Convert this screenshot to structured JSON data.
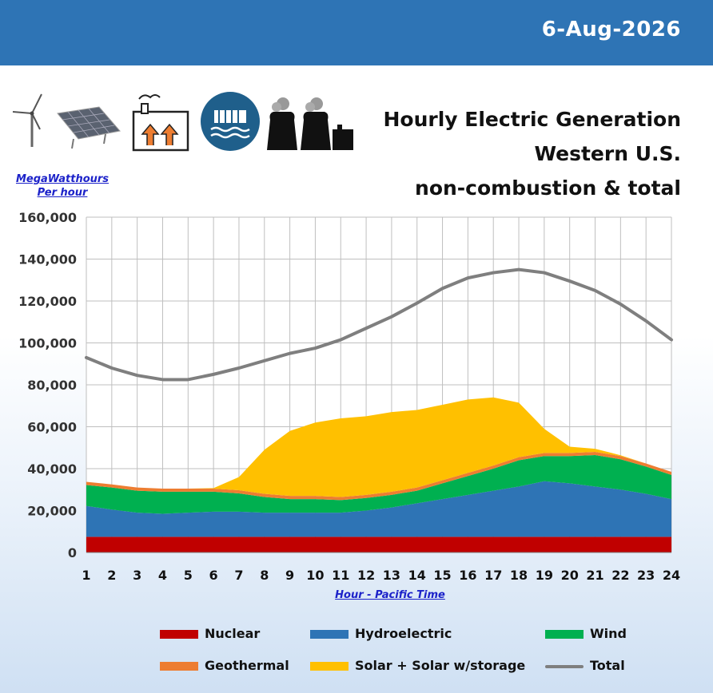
{
  "header": {
    "date": "6-Aug-2026"
  },
  "title_lines": [
    "Hourly Electric Generation",
    "Western U.S.",
    "non-combustion & total"
  ],
  "icons": [
    "wind-turbine-icon",
    "solar-panel-icon",
    "geothermal-plant-icon",
    "hydroelectric-dam-icon",
    "nuclear-plant-icon"
  ],
  "colors": {
    "nuclear": "#c00000",
    "hydro": "#2e74b5",
    "wind": "#00b050",
    "geothermal": "#ed7d31",
    "solar": "#ffc000",
    "total": "#7f7f7f",
    "header_bar": "#2e74b5"
  },
  "chart_data": {
    "type": "area",
    "stacked": true,
    "ylabel_line1": "MegaWatthours",
    "ylabel_line2": "Per hour",
    "xlabel": "Hour - Pacific Time",
    "ylim": [
      0,
      160000
    ],
    "yticks": [
      0,
      20000,
      40000,
      60000,
      80000,
      100000,
      120000,
      140000,
      160000
    ],
    "ytick_labels": [
      "0",
      "20,000",
      "40,000",
      "60,000",
      "80,000",
      "100,000",
      "120,000",
      "140,000",
      "160,000"
    ],
    "x": [
      1,
      2,
      3,
      4,
      5,
      6,
      7,
      8,
      9,
      10,
      11,
      12,
      13,
      14,
      15,
      16,
      17,
      18,
      19,
      20,
      21,
      22,
      23,
      24
    ],
    "grid": true,
    "legend_position": "bottom",
    "series": [
      {
        "key": "nuclear",
        "name": "Nuclear",
        "values": [
          7500,
          7500,
          7500,
          7500,
          7500,
          7500,
          7500,
          7500,
          7500,
          7500,
          7500,
          7500,
          7500,
          7500,
          7500,
          7500,
          7500,
          7500,
          7500,
          7500,
          7500,
          7500,
          7500,
          7500
        ]
      },
      {
        "key": "hydro",
        "name": "Hydroelectric",
        "values": [
          14700,
          13000,
          11500,
          11000,
          11500,
          12000,
          12000,
          11500,
          11500,
          11500,
          11500,
          12500,
          14000,
          16000,
          18000,
          20000,
          22000,
          24000,
          26500,
          25500,
          24000,
          22500,
          20500,
          18000
        ]
      },
      {
        "key": "wind",
        "name": "Wind",
        "values": [
          10000,
          10500,
          10500,
          10500,
          10000,
          9500,
          8700,
          7500,
          6500,
          6500,
          6000,
          6000,
          6000,
          6000,
          7500,
          9000,
          10500,
          12500,
          12000,
          13000,
          15000,
          14500,
          13000,
          11500
        ]
      },
      {
        "key": "geothermal",
        "name": "Geothermal",
        "values": [
          1500,
          1500,
          1500,
          1500,
          1500,
          1500,
          1500,
          1500,
          1500,
          1500,
          1500,
          1500,
          1500,
          1500,
          1500,
          1500,
          1500,
          1500,
          1500,
          1500,
          1500,
          1500,
          1500,
          1500
        ]
      },
      {
        "key": "solar",
        "name": "Solar + Solar w/storage",
        "values": [
          0,
          0,
          0,
          0,
          0,
          200,
          6300,
          21000,
          31000,
          35000,
          37500,
          37500,
          38000,
          37000,
          36000,
          35000,
          32500,
          26000,
          11500,
          3000,
          1500,
          400,
          0,
          0
        ]
      }
    ],
    "total": {
      "key": "total",
      "name": "Total",
      "values": [
        93000,
        88000,
        84500,
        82500,
        82500,
        85000,
        88000,
        91500,
        95000,
        97500,
        101500,
        107000,
        112500,
        119000,
        126000,
        131000,
        133500,
        135000,
        133500,
        129500,
        125000,
        118500,
        110500,
        101500
      ]
    }
  }
}
